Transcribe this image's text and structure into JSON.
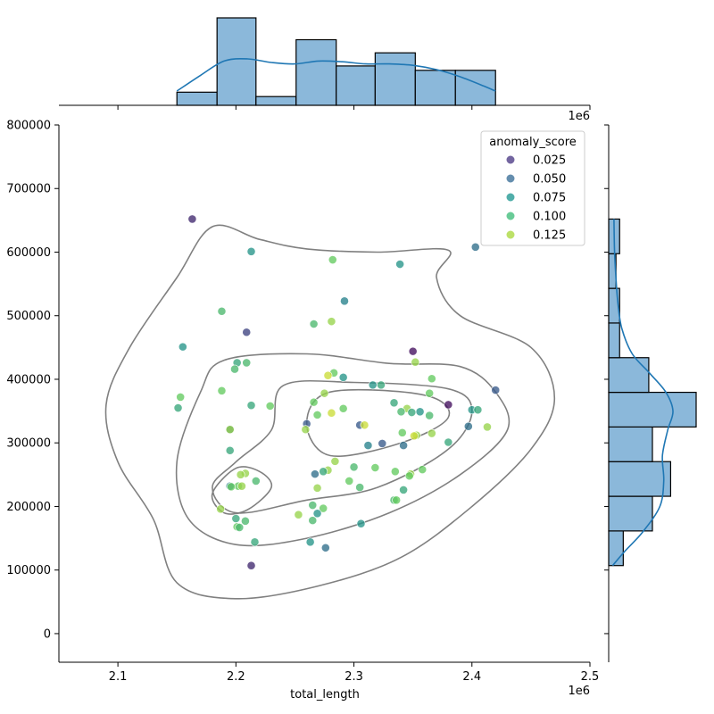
{
  "chart_data": {
    "type": "scatter",
    "kind": "jointplot with kde contours and marginal histograms",
    "xlabel": "total_length",
    "ylabel": "",
    "x_offset_label": "1e6",
    "xlim": [
      2.05,
      2.5
    ],
    "ylim": [
      -45000,
      800000
    ],
    "x_ticks": [
      2.1,
      2.2,
      2.3,
      2.4,
      2.5
    ],
    "y_ticks": [
      0,
      100000,
      200000,
      300000,
      400000,
      500000,
      600000,
      700000,
      800000
    ],
    "legend": {
      "title": "anomaly_score",
      "placement": "top-right",
      "entries": [
        {
          "label": "0.025",
          "color": "#5b4a8f"
        },
        {
          "label": "0.050",
          "color": "#4a7aa0"
        },
        {
          "label": "0.075",
          "color": "#33a09b"
        },
        {
          "label": "0.100",
          "color": "#4fc285"
        },
        {
          "label": "0.125",
          "color": "#b2dc4e"
        }
      ]
    },
    "points": [
      [
        2.163,
        652000,
        0.03
      ],
      [
        2.403,
        608000,
        0.06
      ],
      [
        2.213,
        601000,
        0.08
      ],
      [
        2.282,
        588000,
        0.11
      ],
      [
        2.339,
        581000,
        0.08
      ],
      [
        2.292,
        523000,
        0.07
      ],
      [
        2.188,
        507000,
        0.1
      ],
      [
        2.281,
        491000,
        0.12
      ],
      [
        2.266,
        487000,
        0.1
      ],
      [
        2.209,
        474000,
        0.04
      ],
      [
        2.155,
        451000,
        0.08
      ],
      [
        2.35,
        444000,
        0.02
      ],
      [
        2.352,
        427000,
        0.12
      ],
      [
        2.201,
        426000,
        0.09
      ],
      [
        2.209,
        426000,
        0.1
      ],
      [
        2.199,
        416000,
        0.1
      ],
      [
        2.283,
        410000,
        0.11
      ],
      [
        2.278,
        406000,
        0.13
      ],
      [
        2.291,
        403000,
        0.08
      ],
      [
        2.366,
        401000,
        0.11
      ],
      [
        2.316,
        391000,
        0.08
      ],
      [
        2.323,
        391000,
        0.09
      ],
      [
        2.42,
        383000,
        0.05
      ],
      [
        2.188,
        382000,
        0.11
      ],
      [
        2.275,
        378000,
        0.12
      ],
      [
        2.364,
        378000,
        0.11
      ],
      [
        2.153,
        372000,
        0.11
      ],
      [
        2.266,
        364000,
        0.11
      ],
      [
        2.334,
        363000,
        0.09
      ],
      [
        2.38,
        360000,
        0.02
      ],
      [
        2.213,
        359000,
        0.09
      ],
      [
        2.229,
        358000,
        0.11
      ],
      [
        2.151,
        355000,
        0.09
      ],
      [
        2.291,
        354000,
        0.11
      ],
      [
        2.345,
        354000,
        0.12
      ],
      [
        2.4,
        352000,
        0.08
      ],
      [
        2.405,
        352000,
        0.09
      ],
      [
        2.356,
        349000,
        0.08
      ],
      [
        2.34,
        349000,
        0.1
      ],
      [
        2.349,
        348000,
        0.09
      ],
      [
        2.281,
        347000,
        0.13
      ],
      [
        2.269,
        344000,
        0.11
      ],
      [
        2.364,
        343000,
        0.1
      ],
      [
        2.26,
        330000,
        0.05
      ],
      [
        2.305,
        328000,
        0.05
      ],
      [
        2.309,
        328000,
        0.13
      ],
      [
        2.397,
        326000,
        0.06
      ],
      [
        2.413,
        325000,
        0.12
      ],
      [
        2.195,
        321000,
        0.06
      ],
      [
        2.195,
        321000,
        0.12
      ],
      [
        2.259,
        321000,
        0.12
      ],
      [
        2.341,
        316000,
        0.11
      ],
      [
        2.366,
        315000,
        0.12
      ],
      [
        2.353,
        312000,
        0.12
      ],
      [
        2.351,
        311000,
        0.13
      ],
      [
        2.38,
        301000,
        0.09
      ],
      [
        2.324,
        299000,
        0.05
      ],
      [
        2.312,
        296000,
        0.07
      ],
      [
        2.342,
        296000,
        0.06
      ],
      [
        2.195,
        288000,
        0.09
      ],
      [
        2.284,
        271000,
        0.12
      ],
      [
        2.3,
        262000,
        0.1
      ],
      [
        2.318,
        261000,
        0.11
      ],
      [
        2.358,
        258000,
        0.11
      ],
      [
        2.278,
        257000,
        0.12
      ],
      [
        2.335,
        255000,
        0.11
      ],
      [
        2.274,
        255000,
        0.09
      ],
      [
        2.208,
        252000,
        0.12
      ],
      [
        2.267,
        251000,
        0.06
      ],
      [
        2.204,
        250000,
        0.12
      ],
      [
        2.348,
        251000,
        0.12
      ],
      [
        2.347,
        248000,
        0.11
      ],
      [
        2.296,
        240000,
        0.11
      ],
      [
        2.217,
        240000,
        0.1
      ],
      [
        2.195,
        232000,
        0.07
      ],
      [
        2.202,
        232000,
        0.11
      ],
      [
        2.196,
        231000,
        0.11
      ],
      [
        2.205,
        232000,
        0.12
      ],
      [
        2.305,
        230000,
        0.1
      ],
      [
        2.269,
        229000,
        0.12
      ],
      [
        2.342,
        226000,
        0.09
      ],
      [
        2.334,
        210000,
        0.1
      ],
      [
        2.336,
        210000,
        0.11
      ],
      [
        2.265,
        202000,
        0.1
      ],
      [
        2.274,
        197000,
        0.11
      ],
      [
        2.187,
        196000,
        0.12
      ],
      [
        2.269,
        189000,
        0.08
      ],
      [
        2.253,
        187000,
        0.12
      ],
      [
        2.2,
        181000,
        0.09
      ],
      [
        2.265,
        178000,
        0.1
      ],
      [
        2.208,
        177000,
        0.1
      ],
      [
        2.306,
        173000,
        0.08
      ],
      [
        2.201,
        168000,
        0.11
      ],
      [
        2.203,
        167000,
        0.1
      ],
      [
        2.216,
        144000,
        0.09
      ],
      [
        2.263,
        144000,
        0.08
      ],
      [
        2.276,
        135000,
        0.06
      ],
      [
        2.213,
        107000,
        0.03
      ]
    ],
    "marginal_x_histogram": {
      "bin_edges": [
        2.15,
        2.184,
        2.217,
        2.251,
        2.285,
        2.318,
        2.352,
        2.386,
        2.42
      ],
      "counts": [
        3,
        20,
        2,
        15,
        9,
        12,
        8,
        8
      ],
      "kde_density": [
        [
          2.15,
          0.2
        ],
        [
          2.17,
          0.42
        ],
        [
          2.19,
          0.62
        ],
        [
          2.21,
          0.65
        ],
        [
          2.23,
          0.6
        ],
        [
          2.25,
          0.58
        ],
        [
          2.27,
          0.62
        ],
        [
          2.29,
          0.61
        ],
        [
          2.31,
          0.58
        ],
        [
          2.33,
          0.58
        ],
        [
          2.35,
          0.56
        ],
        [
          2.37,
          0.5
        ],
        [
          2.39,
          0.4
        ],
        [
          2.41,
          0.27
        ],
        [
          2.42,
          0.2
        ]
      ]
    },
    "marginal_y_histogram": {
      "bin_edges": [
        107000,
        161500,
        216000,
        270500,
        325000,
        379500,
        434000,
        488500,
        543000,
        597500,
        652000
      ],
      "counts": [
        4,
        12,
        17,
        12,
        24,
        11,
        3,
        3,
        2,
        3
      ],
      "kde_density": [
        [
          107000,
          0.6
        ],
        [
          130000,
          2.5
        ],
        [
          160000,
          5.2
        ],
        [
          200000,
          7.8
        ],
        [
          240000,
          8.4
        ],
        [
          280000,
          8.2
        ],
        [
          320000,
          9.0
        ],
        [
          350000,
          9.8
        ],
        [
          380000,
          8.7
        ],
        [
          410000,
          6.2
        ],
        [
          440000,
          3.6
        ],
        [
          480000,
          2.0
        ],
        [
          520000,
          1.4
        ],
        [
          560000,
          1.1
        ],
        [
          600000,
          0.9
        ],
        [
          652000,
          0.8
        ]
      ]
    },
    "kde_contours": [
      [
        [
          2.18,
          640000
        ],
        [
          2.22,
          620000
        ],
        [
          2.26,
          605000
        ],
        [
          2.32,
          600000
        ],
        [
          2.38,
          603000
        ],
        [
          2.37,
          560000
        ],
        [
          2.39,
          500000
        ],
        [
          2.45,
          450000
        ],
        [
          2.47,
          370000
        ],
        [
          2.45,
          290000
        ],
        [
          2.4,
          200000
        ],
        [
          2.34,
          120000
        ],
        [
          2.27,
          75000
        ],
        [
          2.2,
          55000
        ],
        [
          2.15,
          80000
        ],
        [
          2.13,
          180000
        ],
        [
          2.1,
          270000
        ],
        [
          2.09,
          360000
        ],
        [
          2.11,
          450000
        ],
        [
          2.15,
          560000
        ],
        [
          2.18,
          640000
        ]
      ],
      [
        [
          2.19,
          430000
        ],
        [
          2.26,
          440000
        ],
        [
          2.33,
          425000
        ],
        [
          2.39,
          420000
        ],
        [
          2.42,
          380000
        ],
        [
          2.43,
          320000
        ],
        [
          2.39,
          250000
        ],
        [
          2.33,
          190000
        ],
        [
          2.26,
          150000
        ],
        [
          2.2,
          140000
        ],
        [
          2.16,
          180000
        ],
        [
          2.15,
          270000
        ],
        [
          2.17,
          380000
        ],
        [
          2.19,
          430000
        ]
      ],
      [
        [
          2.24,
          390000
        ],
        [
          2.3,
          395000
        ],
        [
          2.38,
          385000
        ],
        [
          2.4,
          350000
        ],
        [
          2.38,
          290000
        ],
        [
          2.32,
          230000
        ],
        [
          2.26,
          210000
        ],
        [
          2.2,
          190000
        ],
        [
          2.18,
          230000
        ],
        [
          2.2,
          270000
        ],
        [
          2.23,
          320000
        ],
        [
          2.24,
          390000
        ]
      ],
      [
        [
          2.28,
          380000
        ],
        [
          2.36,
          375000
        ],
        [
          2.38,
          340000
        ],
        [
          2.34,
          300000
        ],
        [
          2.28,
          280000
        ],
        [
          2.26,
          330000
        ],
        [
          2.28,
          380000
        ]
      ],
      [
        [
          2.2,
          260000
        ],
        [
          2.22,
          255000
        ],
        [
          2.23,
          230000
        ],
        [
          2.21,
          195000
        ],
        [
          2.19,
          190000
        ],
        [
          2.18,
          220000
        ],
        [
          2.2,
          260000
        ]
      ]
    ]
  }
}
